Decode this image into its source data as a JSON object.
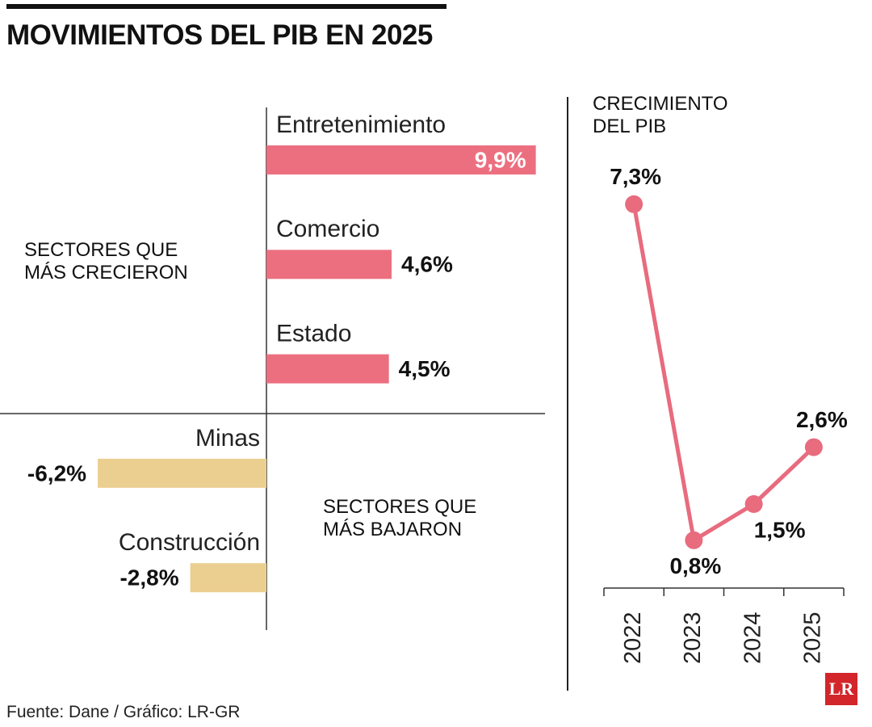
{
  "title": "MOVIMIENTOS DEL PIB EN 2025",
  "source": "Fuente: Dane / Gráfico: LR-GR",
  "logo": "LR",
  "chart_data": [
    {
      "type": "hbar",
      "categories": [
        "Entretenimiento",
        "Comercio",
        "Estado",
        "Minas",
        "Construcción"
      ],
      "values": [
        9.9,
        4.6,
        4.5,
        -6.2,
        -2.8
      ],
      "value_labels": [
        "9,9%",
        "4,6%",
        "4,5%",
        "-6,2%",
        "-2,8%"
      ],
      "positive_color": "#ec6f80",
      "negative_color": "#ebcf91",
      "xlim": [
        -10,
        10
      ],
      "annotations": [
        "SECTORES QUE MÁS CRECIERON",
        "SECTORES QUE MÁS BAJARON"
      ]
    },
    {
      "type": "line",
      "title": "CRECIMIENTO DEL PIB",
      "categories": [
        "2022",
        "2023",
        "2024",
        "2025"
      ],
      "values": [
        7.3,
        0.8,
        1.5,
        2.6
      ],
      "value_labels": [
        "7,3%",
        "0,8%",
        "1,5%",
        "2,6%"
      ],
      "color": "#e86b7e",
      "ylim": [
        0,
        8
      ]
    }
  ]
}
